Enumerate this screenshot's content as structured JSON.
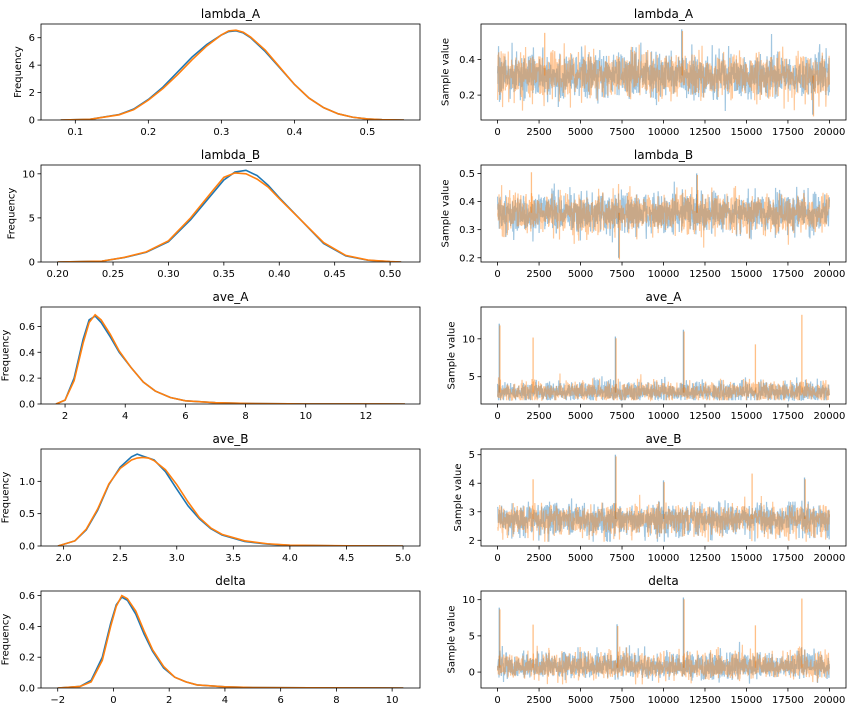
{
  "chart_data": [
    {
      "type": "line",
      "panel": "density",
      "title": "lambda_A",
      "ylabel": "Frequency",
      "xlim": [
        0.053,
        0.572
      ],
      "ylim": [
        0,
        7
      ],
      "xticks": [
        0.1,
        0.2,
        0.3,
        0.4,
        0.5
      ],
      "xticklabels": [
        "0.1",
        "0.2",
        "0.3",
        "0.4",
        "0.5"
      ],
      "yticks": [
        0,
        2,
        4,
        6
      ],
      "yticklabels": [
        "0",
        "2",
        "4",
        "6"
      ],
      "series": [
        {
          "color": "#1f77b4",
          "x": [
            0.08,
            0.12,
            0.16,
            0.18,
            0.2,
            0.22,
            0.24,
            0.26,
            0.28,
            0.3,
            0.31,
            0.32,
            0.33,
            0.34,
            0.36,
            0.38,
            0.4,
            0.42,
            0.44,
            0.46,
            0.48,
            0.5,
            0.52,
            0.55
          ],
          "y": [
            0,
            0.05,
            0.4,
            0.8,
            1.5,
            2.4,
            3.5,
            4.6,
            5.5,
            6.2,
            6.45,
            6.5,
            6.35,
            6.0,
            5.0,
            3.8,
            2.6,
            1.6,
            0.9,
            0.45,
            0.2,
            0.08,
            0.02,
            0
          ]
        },
        {
          "color": "#ff7f0e",
          "x": [
            0.08,
            0.12,
            0.16,
            0.18,
            0.2,
            0.22,
            0.24,
            0.26,
            0.28,
            0.3,
            0.31,
            0.32,
            0.33,
            0.34,
            0.36,
            0.38,
            0.4,
            0.42,
            0.44,
            0.46,
            0.48,
            0.5,
            0.52,
            0.55
          ],
          "y": [
            0,
            0.05,
            0.38,
            0.75,
            1.45,
            2.3,
            3.3,
            4.4,
            5.4,
            6.2,
            6.5,
            6.55,
            6.4,
            6.05,
            5.1,
            3.85,
            2.6,
            1.6,
            0.9,
            0.45,
            0.2,
            0.08,
            0.02,
            0
          ]
        }
      ]
    },
    {
      "type": "line",
      "panel": "trace",
      "title": "lambda_A",
      "ylabel": "Sample value",
      "xlim": [
        -1000,
        21000
      ],
      "ylim": [
        0.06,
        0.6
      ],
      "xticks": [
        0,
        2500,
        5000,
        7500,
        10000,
        12500,
        15000,
        17500,
        20000
      ],
      "xticklabels": [
        "0",
        "2500",
        "5000",
        "7500",
        "10000",
        "12500",
        "15000",
        "17500",
        "20000"
      ],
      "yticks": [
        0.2,
        0.4
      ],
      "yticklabels": [
        "0.2",
        "0.4"
      ],
      "n_samples": 20000,
      "center": 0.31,
      "spread": 0.062,
      "lo": 0.09,
      "hi": 0.58,
      "spikes": [
        [
          11100,
          0.57
        ],
        [
          2800,
          0.56
        ],
        [
          19000,
          0.09
        ]
      ],
      "series": [
        {
          "color": "#1f77b4",
          "seed": 11
        },
        {
          "color": "#ff7f0e",
          "seed": 29
        }
      ]
    },
    {
      "type": "line",
      "panel": "density",
      "title": "lambda_B",
      "ylabel": "Frequency",
      "xlim": [
        0.185,
        0.527
      ],
      "ylim": [
        0,
        11
      ],
      "xticks": [
        0.2,
        0.25,
        0.3,
        0.35,
        0.4,
        0.45,
        0.5
      ],
      "xticklabels": [
        "0.20",
        "0.25",
        "0.30",
        "0.35",
        "0.40",
        "0.45",
        "0.50"
      ],
      "yticks": [
        0,
        5,
        10
      ],
      "yticklabels": [
        "0",
        "5",
        "10"
      ],
      "series": [
        {
          "color": "#1f77b4",
          "x": [
            0.2,
            0.24,
            0.26,
            0.28,
            0.3,
            0.32,
            0.34,
            0.35,
            0.36,
            0.37,
            0.38,
            0.39,
            0.4,
            0.42,
            0.44,
            0.46,
            0.48,
            0.5,
            0.51
          ],
          "y": [
            0,
            0.1,
            0.5,
            1.1,
            2.3,
            4.8,
            7.8,
            9.3,
            10.2,
            10.4,
            9.8,
            8.7,
            7.3,
            4.7,
            2.1,
            0.7,
            0.2,
            0.04,
            0
          ]
        },
        {
          "color": "#ff7f0e",
          "x": [
            0.2,
            0.24,
            0.26,
            0.28,
            0.3,
            0.32,
            0.34,
            0.35,
            0.36,
            0.37,
            0.38,
            0.39,
            0.4,
            0.42,
            0.44,
            0.46,
            0.48,
            0.5,
            0.51
          ],
          "y": [
            0,
            0.1,
            0.52,
            1.15,
            2.4,
            5.0,
            8.1,
            9.6,
            10.1,
            10.0,
            9.4,
            8.5,
            7.2,
            4.7,
            2.2,
            0.75,
            0.22,
            0.05,
            0
          ]
        }
      ]
    },
    {
      "type": "line",
      "panel": "trace",
      "title": "lambda_B",
      "ylabel": "Sample value",
      "xlim": [
        -1000,
        21000
      ],
      "ylim": [
        0.185,
        0.53
      ],
      "xticks": [
        0,
        2500,
        5000,
        7500,
        10000,
        12500,
        15000,
        17500,
        20000
      ],
      "xticklabels": [
        "0",
        "2500",
        "5000",
        "7500",
        "10000",
        "12500",
        "15000",
        "17500",
        "20000"
      ],
      "yticks": [
        0.2,
        0.3,
        0.4,
        0.5
      ],
      "yticklabels": [
        "0.2",
        "0.3",
        "0.4",
        "0.5"
      ],
      "n_samples": 20000,
      "center": 0.36,
      "spread": 0.035,
      "lo": 0.22,
      "hi": 0.51,
      "spikes": [
        [
          7300,
          0.2
        ],
        [
          2000,
          0.51
        ],
        [
          12000,
          0.5
        ]
      ],
      "series": [
        {
          "color": "#1f77b4",
          "seed": 5
        },
        {
          "color": "#ff7f0e",
          "seed": 17
        }
      ]
    },
    {
      "type": "line",
      "panel": "density",
      "title": "ave_A",
      "ylabel": "Frequency",
      "xlim": [
        1.2,
        13.8
      ],
      "ylim": [
        0,
        0.75
      ],
      "xticks": [
        2,
        4,
        6,
        8,
        10,
        12
      ],
      "xticklabels": [
        "2",
        "4",
        "6",
        "8",
        "10",
        "12"
      ],
      "yticks": [
        0,
        0.2,
        0.4,
        0.6
      ],
      "yticklabels": [
        "0.0",
        "0.2",
        "0.4",
        "0.6"
      ],
      "series": [
        {
          "color": "#1f77b4",
          "x": [
            1.7,
            2.0,
            2.3,
            2.6,
            2.8,
            3.0,
            3.2,
            3.5,
            3.8,
            4.2,
            4.6,
            5.0,
            5.5,
            6.0,
            7.0,
            8.0,
            10.0,
            13.3
          ],
          "y": [
            0,
            0.03,
            0.2,
            0.5,
            0.65,
            0.68,
            0.63,
            0.52,
            0.4,
            0.28,
            0.17,
            0.1,
            0.05,
            0.025,
            0.01,
            0.004,
            0.001,
            0
          ]
        },
        {
          "color": "#ff7f0e",
          "x": [
            1.7,
            2.0,
            2.3,
            2.6,
            2.8,
            3.0,
            3.2,
            3.5,
            3.8,
            4.2,
            4.6,
            5.0,
            5.5,
            6.0,
            7.0,
            8.0,
            10.0,
            13.3
          ],
          "y": [
            0,
            0.03,
            0.18,
            0.47,
            0.63,
            0.69,
            0.65,
            0.54,
            0.41,
            0.28,
            0.17,
            0.1,
            0.05,
            0.025,
            0.01,
            0.004,
            0.001,
            0
          ]
        }
      ]
    },
    {
      "type": "line",
      "panel": "trace",
      "title": "ave_A",
      "ylabel": "Sample value",
      "xlim": [
        -1000,
        21000
      ],
      "ylim": [
        1.4,
        14.2
      ],
      "xticks": [
        0,
        2500,
        5000,
        7500,
        10000,
        12500,
        15000,
        17500,
        20000
      ],
      "xticklabels": [
        "0",
        "2500",
        "5000",
        "7500",
        "10000",
        "12500",
        "15000",
        "17500",
        "20000"
      ],
      "yticks": [
        5,
        10
      ],
      "yticklabels": [
        "5",
        "10"
      ],
      "n_samples": 20000,
      "center": 2.9,
      "spread": 0.55,
      "lo": 1.9,
      "hi": 13.4,
      "skew": 1.4,
      "spikes": [
        [
          100,
          12.0
        ],
        [
          2100,
          10.4
        ],
        [
          11200,
          11.2
        ],
        [
          18300,
          13.4
        ],
        [
          7100,
          10.3
        ],
        [
          15500,
          9.5
        ]
      ],
      "series": [
        {
          "color": "#1f77b4",
          "seed": 3
        },
        {
          "color": "#ff7f0e",
          "seed": 41
        }
      ]
    },
    {
      "type": "line",
      "panel": "density",
      "title": "ave_B",
      "ylabel": "Frequency",
      "xlim": [
        1.8,
        5.15
      ],
      "ylim": [
        0,
        1.5
      ],
      "xticks": [
        2.0,
        2.5,
        3.0,
        3.5,
        4.0,
        4.5,
        5.0
      ],
      "xticklabels": [
        "2.0",
        "2.5",
        "3.0",
        "3.5",
        "4.0",
        "4.5",
        "5.0"
      ],
      "yticks": [
        0,
        0.5,
        1.0
      ],
      "yticklabels": [
        "0.0",
        "0.5",
        "1.0"
      ],
      "series": [
        {
          "color": "#1f77b4",
          "x": [
            1.95,
            2.1,
            2.2,
            2.3,
            2.4,
            2.5,
            2.6,
            2.65,
            2.7,
            2.75,
            2.8,
            2.9,
            3.0,
            3.1,
            3.2,
            3.3,
            3.4,
            3.6,
            3.8,
            4.0,
            4.5,
            5.0
          ],
          "y": [
            0,
            0.08,
            0.25,
            0.55,
            0.95,
            1.22,
            1.38,
            1.42,
            1.39,
            1.36,
            1.33,
            1.15,
            0.88,
            0.62,
            0.42,
            0.27,
            0.17,
            0.07,
            0.03,
            0.01,
            0.002,
            0
          ]
        },
        {
          "color": "#ff7f0e",
          "x": [
            1.95,
            2.1,
            2.2,
            2.3,
            2.4,
            2.5,
            2.6,
            2.65,
            2.7,
            2.75,
            2.8,
            2.9,
            3.0,
            3.1,
            3.2,
            3.3,
            3.4,
            3.6,
            3.8,
            4.0,
            4.5,
            5.0
          ],
          "y": [
            0,
            0.08,
            0.26,
            0.57,
            0.96,
            1.2,
            1.33,
            1.36,
            1.37,
            1.36,
            1.32,
            1.18,
            0.95,
            0.68,
            0.44,
            0.28,
            0.18,
            0.08,
            0.035,
            0.012,
            0.003,
            0
          ]
        }
      ]
    },
    {
      "type": "line",
      "panel": "trace",
      "title": "ave_B",
      "ylabel": "Sample value",
      "xlim": [
        -1000,
        21000
      ],
      "ylim": [
        1.8,
        5.2
      ],
      "xticks": [
        0,
        2500,
        5000,
        7500,
        10000,
        12500,
        15000,
        17500,
        20000
      ],
      "xticklabels": [
        "0",
        "2500",
        "5000",
        "7500",
        "10000",
        "12500",
        "15000",
        "17500",
        "20000"
      ],
      "yticks": [
        2,
        3,
        4,
        5
      ],
      "yticklabels": [
        "2",
        "3",
        "4",
        "5"
      ],
      "n_samples": 20000,
      "center": 2.75,
      "spread": 0.3,
      "lo": 1.95,
      "hi": 5.0,
      "skew": 0.8,
      "spikes": [
        [
          7100,
          5.0
        ],
        [
          15300,
          4.4
        ],
        [
          18500,
          4.2
        ],
        [
          2100,
          4.2
        ],
        [
          10000,
          4.1
        ]
      ],
      "series": [
        {
          "color": "#1f77b4",
          "seed": 7
        },
        {
          "color": "#ff7f0e",
          "seed": 23
        }
      ]
    },
    {
      "type": "line",
      "panel": "density",
      "title": "delta",
      "ylabel": "Frequency",
      "xlim": [
        -2.6,
        11.0
      ],
      "ylim": [
        0,
        0.63
      ],
      "xticks": [
        -2,
        0,
        2,
        4,
        6,
        8,
        10
      ],
      "xticklabels": [
        "−2",
        "0",
        "2",
        "4",
        "6",
        "8",
        "10"
      ],
      "yticks": [
        0,
        0.2,
        0.4,
        0.6
      ],
      "yticklabels": [
        "0.0",
        "0.2",
        "0.4",
        "0.6"
      ],
      "series": [
        {
          "color": "#1f77b4",
          "x": [
            -2.0,
            -1.2,
            -0.8,
            -0.4,
            -0.1,
            0.1,
            0.3,
            0.5,
            0.8,
            1.1,
            1.4,
            1.8,
            2.2,
            2.6,
            3.0,
            4.0,
            5.0,
            7.0,
            10.4
          ],
          "y": [
            0,
            0.01,
            0.05,
            0.2,
            0.42,
            0.54,
            0.59,
            0.57,
            0.48,
            0.35,
            0.24,
            0.13,
            0.07,
            0.04,
            0.02,
            0.008,
            0.003,
            0.001,
            0
          ]
        },
        {
          "color": "#ff7f0e",
          "x": [
            -2.0,
            -1.2,
            -0.8,
            -0.4,
            -0.1,
            0.1,
            0.3,
            0.5,
            0.8,
            1.1,
            1.4,
            1.8,
            2.2,
            2.6,
            3.0,
            4.0,
            5.0,
            7.0,
            10.4
          ],
          "y": [
            0,
            0.01,
            0.04,
            0.18,
            0.4,
            0.53,
            0.6,
            0.58,
            0.5,
            0.37,
            0.25,
            0.14,
            0.07,
            0.04,
            0.02,
            0.008,
            0.003,
            0.001,
            0
          ]
        }
      ]
    },
    {
      "type": "line",
      "panel": "trace",
      "title": "delta",
      "ylabel": "Sample value",
      "xlim": [
        -1000,
        21000
      ],
      "ylim": [
        -2.2,
        11.2
      ],
      "xticks": [
        0,
        2500,
        5000,
        7500,
        10000,
        12500,
        15000,
        17500,
        20000
      ],
      "xticklabels": [
        "0",
        "2500",
        "5000",
        "7500",
        "10000",
        "12500",
        "15000",
        "17500",
        "20000"
      ],
      "yticks": [
        0,
        5,
        10
      ],
      "yticklabels": [
        "0",
        "5",
        "10"
      ],
      "n_samples": 20000,
      "center": 0.6,
      "spread": 0.7,
      "lo": -1.7,
      "hi": 10.4,
      "skew": 1.5,
      "spikes": [
        [
          100,
          8.9
        ],
        [
          2100,
          6.8
        ],
        [
          11200,
          10.3
        ],
        [
          18300,
          10.4
        ],
        [
          7200,
          6.6
        ],
        [
          15500,
          6.7
        ]
      ],
      "series": [
        {
          "color": "#1f77b4",
          "seed": 13
        },
        {
          "color": "#ff7f0e",
          "seed": 37
        }
      ]
    }
  ]
}
